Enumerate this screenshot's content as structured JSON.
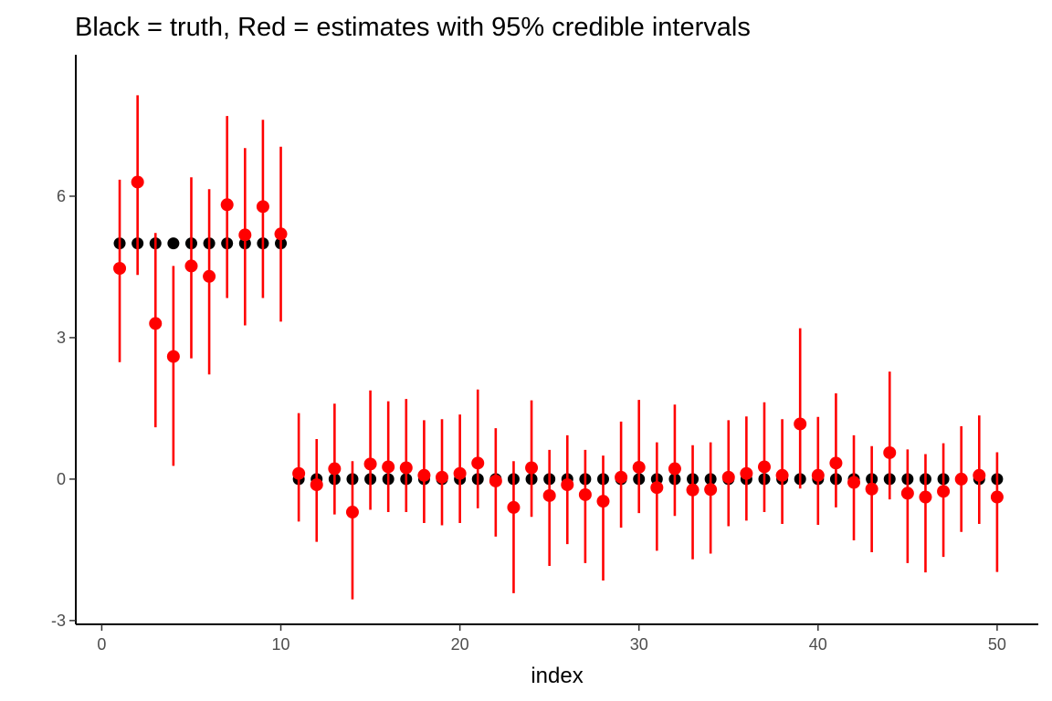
{
  "chart_data": {
    "type": "scatter",
    "title": "Black = truth, Red = estimates with 95% credible intervals",
    "xlabel": "index",
    "ylabel": "",
    "xlim": [
      -1.45,
      52.3
    ],
    "ylim": [
      -3.08,
      9.0
    ],
    "x_ticks": [
      0,
      10,
      20,
      30,
      40,
      50
    ],
    "y_ticks": [
      -3,
      0,
      3,
      6
    ],
    "grid": false,
    "legend": "none",
    "colors": {
      "truth": "#000000",
      "estimate": "#ff0000"
    },
    "x": [
      1,
      2,
      3,
      4,
      5,
      6,
      7,
      8,
      9,
      10,
      11,
      12,
      13,
      14,
      15,
      16,
      17,
      18,
      19,
      20,
      21,
      22,
      23,
      24,
      25,
      26,
      27,
      28,
      29,
      30,
      31,
      32,
      33,
      34,
      35,
      36,
      37,
      38,
      39,
      40,
      41,
      42,
      43,
      44,
      45,
      46,
      47,
      48,
      49,
      50
    ],
    "truth": [
      5,
      5,
      5,
      5,
      5,
      5,
      5,
      5,
      5,
      5,
      0,
      0,
      0,
      0,
      0,
      0,
      0,
      0,
      0,
      0,
      0,
      0,
      0,
      0,
      0,
      0,
      0,
      0,
      0,
      0,
      0,
      0,
      0,
      0,
      0,
      0,
      0,
      0,
      0,
      0,
      0,
      0,
      0,
      0,
      0,
      0,
      0,
      0,
      0,
      0
    ],
    "estimate": [
      4.47,
      6.3,
      3.3,
      2.6,
      4.52,
      4.3,
      5.82,
      5.18,
      5.78,
      5.2,
      0.12,
      -0.12,
      0.22,
      -0.7,
      0.32,
      0.26,
      0.24,
      0.08,
      0.04,
      0.12,
      0.34,
      -0.04,
      -0.6,
      0.24,
      -0.35,
      -0.12,
      -0.33,
      -0.47,
      0.04,
      0.25,
      -0.18,
      0.22,
      -0.23,
      -0.22,
      0.04,
      0.12,
      0.26,
      0.08,
      1.17,
      0.08,
      0.34,
      -0.07,
      -0.21,
      0.56,
      -0.3,
      -0.38,
      -0.26,
      0.0,
      0.08,
      -0.38
    ],
    "lower": [
      2.48,
      4.33,
      1.1,
      0.28,
      2.56,
      2.22,
      3.84,
      3.26,
      3.84,
      3.34,
      -0.9,
      -1.33,
      -0.75,
      -2.55,
      -0.65,
      -0.7,
      -0.7,
      -0.93,
      -0.98,
      -0.93,
      -0.62,
      -1.22,
      -2.42,
      -0.8,
      -1.84,
      -1.38,
      -1.78,
      -2.15,
      -1.03,
      -0.72,
      -1.52,
      -0.78,
      -1.7,
      -1.58,
      -1.0,
      -0.88,
      -0.7,
      -0.95,
      -0.2,
      -0.97,
      -0.6,
      -1.3,
      -1.55,
      -0.43,
      -1.78,
      -1.98,
      -1.65,
      -1.12,
      -0.95,
      -1.97
    ],
    "upper": [
      6.35,
      8.14,
      5.22,
      4.52,
      6.4,
      6.15,
      7.7,
      7.02,
      7.62,
      7.05,
      1.4,
      0.85,
      1.6,
      0.38,
      1.88,
      1.65,
      1.7,
      1.25,
      1.27,
      1.37,
      1.9,
      1.08,
      0.38,
      1.67,
      0.62,
      0.93,
      0.62,
      0.5,
      1.22,
      1.68,
      0.78,
      1.58,
      0.72,
      0.78,
      1.25,
      1.33,
      1.63,
      1.27,
      3.2,
      1.32,
      1.82,
      0.93,
      0.7,
      2.28,
      0.63,
      0.53,
      0.76,
      1.12,
      1.35,
      0.57
    ]
  }
}
